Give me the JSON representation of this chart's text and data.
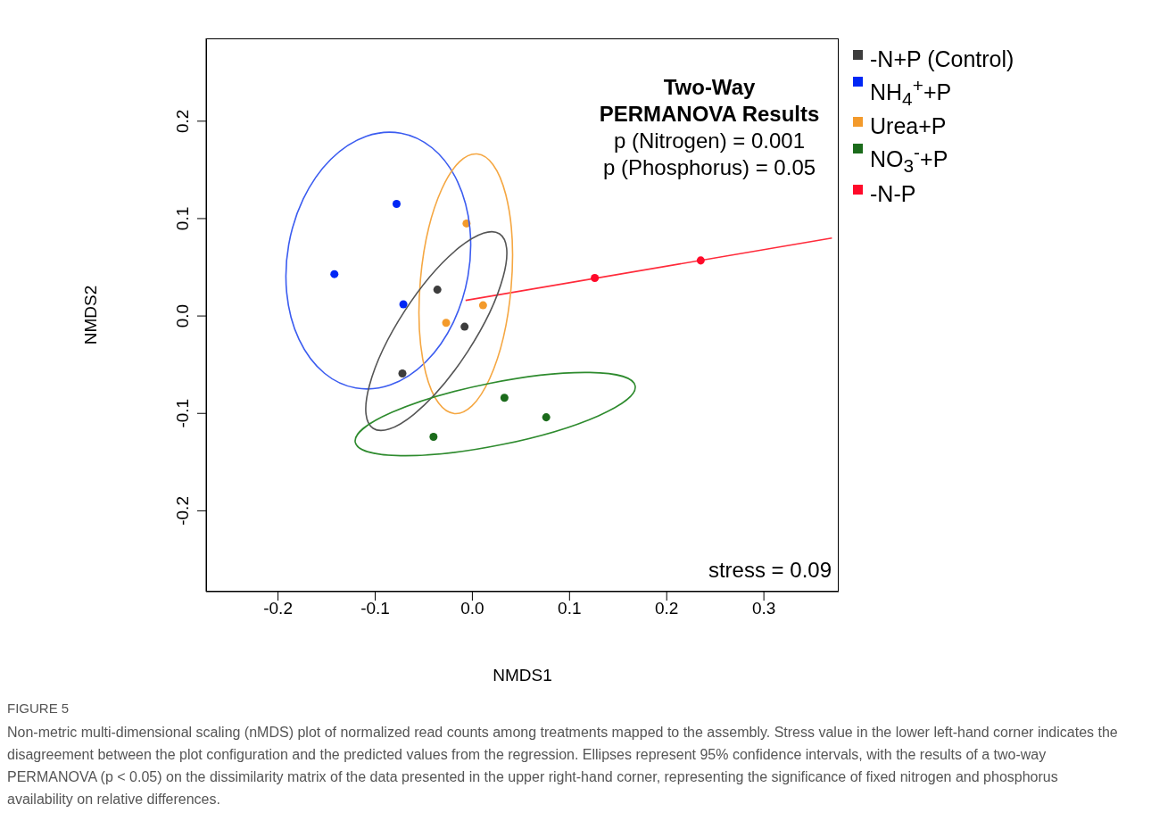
{
  "chart_data": {
    "type": "scatter",
    "xlabel": "NMDS1",
    "ylabel": "NMDS2",
    "xlim": [
      -0.274,
      0.377
    ],
    "ylim": [
      -0.283,
      0.285
    ],
    "xticks": [
      -0.2,
      -0.1,
      {
        "value": 0,
        "label": "0.0"
      },
      0.1,
      0.2,
      0.3
    ],
    "yticks": [
      -0.2,
      -0.1,
      {
        "value": 0,
        "label": "0.0"
      },
      0.1,
      0.2
    ],
    "grid": false,
    "legend": "top right",
    "marker": "circle",
    "series": [
      {
        "name": "-N+P (Control)",
        "color": "#3d3d3d",
        "x": [
          -0.036,
          -0.008,
          -0.072
        ],
        "values": [
          0.027,
          -0.011,
          -0.059
        ]
      },
      {
        "name": "NH$_{4}$$^{+}$+P",
        "color": "#0027f5",
        "x": [
          -0.078,
          -0.142,
          -0.071
        ],
        "values": [
          0.115,
          0.043,
          0.012
        ]
      },
      {
        "name": "Urea+P",
        "color": "#f39a2b",
        "x": [
          -0.006,
          -0.027,
          0.011
        ],
        "values": [
          0.095,
          -0.007,
          0.011
        ]
      },
      {
        "name": "NO$_{3}$$^{-}$+P",
        "color": "#1b6b1b",
        "x": [
          0.033,
          0.076,
          -0.04
        ],
        "values": [
          -0.084,
          -0.104,
          -0.124
        ]
      },
      {
        "name": "-N-P",
        "color": "#ff0a2a",
        "x": [
          0.126,
          0.235
        ],
        "values": [
          0.039,
          0.057
        ]
      },
      {
        "type": "line",
        "color": "#ff2a3a",
        "marker": "none",
        "x": [
          -0.007,
          0.37
        ],
        "values": [
          0.016,
          0.08
        ]
      }
    ],
    "annotations": [
      "Two-Way",
      "PERMANOVA Results",
      "p (Nitrogen) = 0.001",
      "p (Phosphorus) = 0.05",
      "stress = 0.09",
      "FIGURE 5",
      "Non-metric multi-dimensional scaling (nMDS) plot of normalized read counts among treatments mapped to the assembly. Stress value in the lower left-hand corner indicates the disagreement between the plot configuration and the predicted values from the regression. Ellipses represent 95% confidence intervals, with the results of a two-way PERMANOVA (p < 0.05) on the dissimilarity matrix of the data presented in the upper right-hand corner, representing the significance of fixed nitrogen and phosphorus availability on relative differences."
    ]
  }
}
